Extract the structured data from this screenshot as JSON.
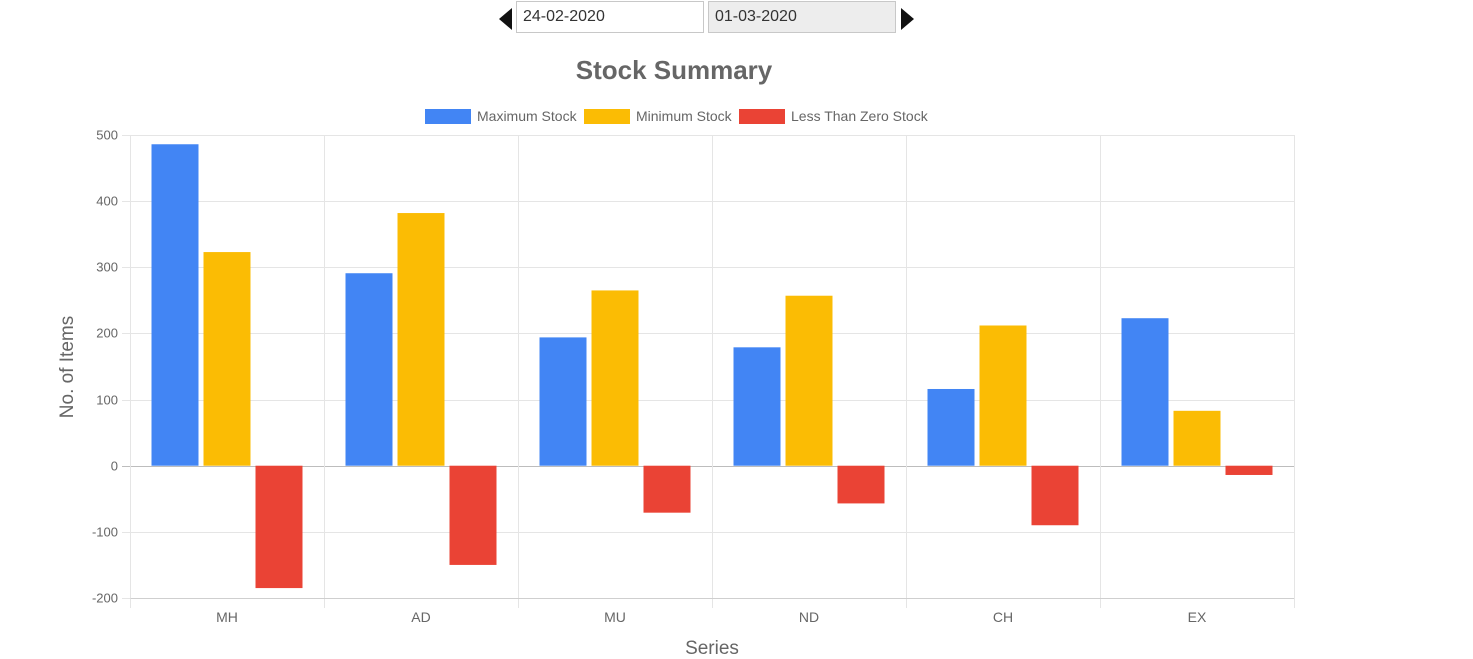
{
  "date_range": {
    "from": "24-02-2020",
    "to": "01-03-2020"
  },
  "colors": {
    "maximum": "#4285f4",
    "minimum": "#fbbc04",
    "negative": "#ea4335",
    "grid": "#e5e5e5",
    "text": "#666666"
  },
  "chart_data": {
    "type": "bar",
    "title": "Stock Summary",
    "xlabel": "Series",
    "ylabel": "No. of Items",
    "ylim": [
      -200,
      500
    ],
    "yticks": [
      500,
      400,
      300,
      200,
      100,
      0,
      -100,
      -200
    ],
    "categories": [
      "MH",
      "AD",
      "MU",
      "ND",
      "CH",
      "EX"
    ],
    "legend_position": "top",
    "grid": true,
    "series": [
      {
        "name": "Maximum Stock",
        "color": "#4285f4",
        "values": [
          486,
          291,
          194,
          179,
          116,
          223
        ]
      },
      {
        "name": "Minimum Stock",
        "color": "#fbbc04",
        "values": [
          323,
          382,
          265,
          257,
          212,
          83
        ]
      },
      {
        "name": "Less Than Zero Stock",
        "color": "#ea4335",
        "values": [
          -185,
          -150,
          -71,
          -57,
          -90,
          -14
        ]
      }
    ]
  }
}
